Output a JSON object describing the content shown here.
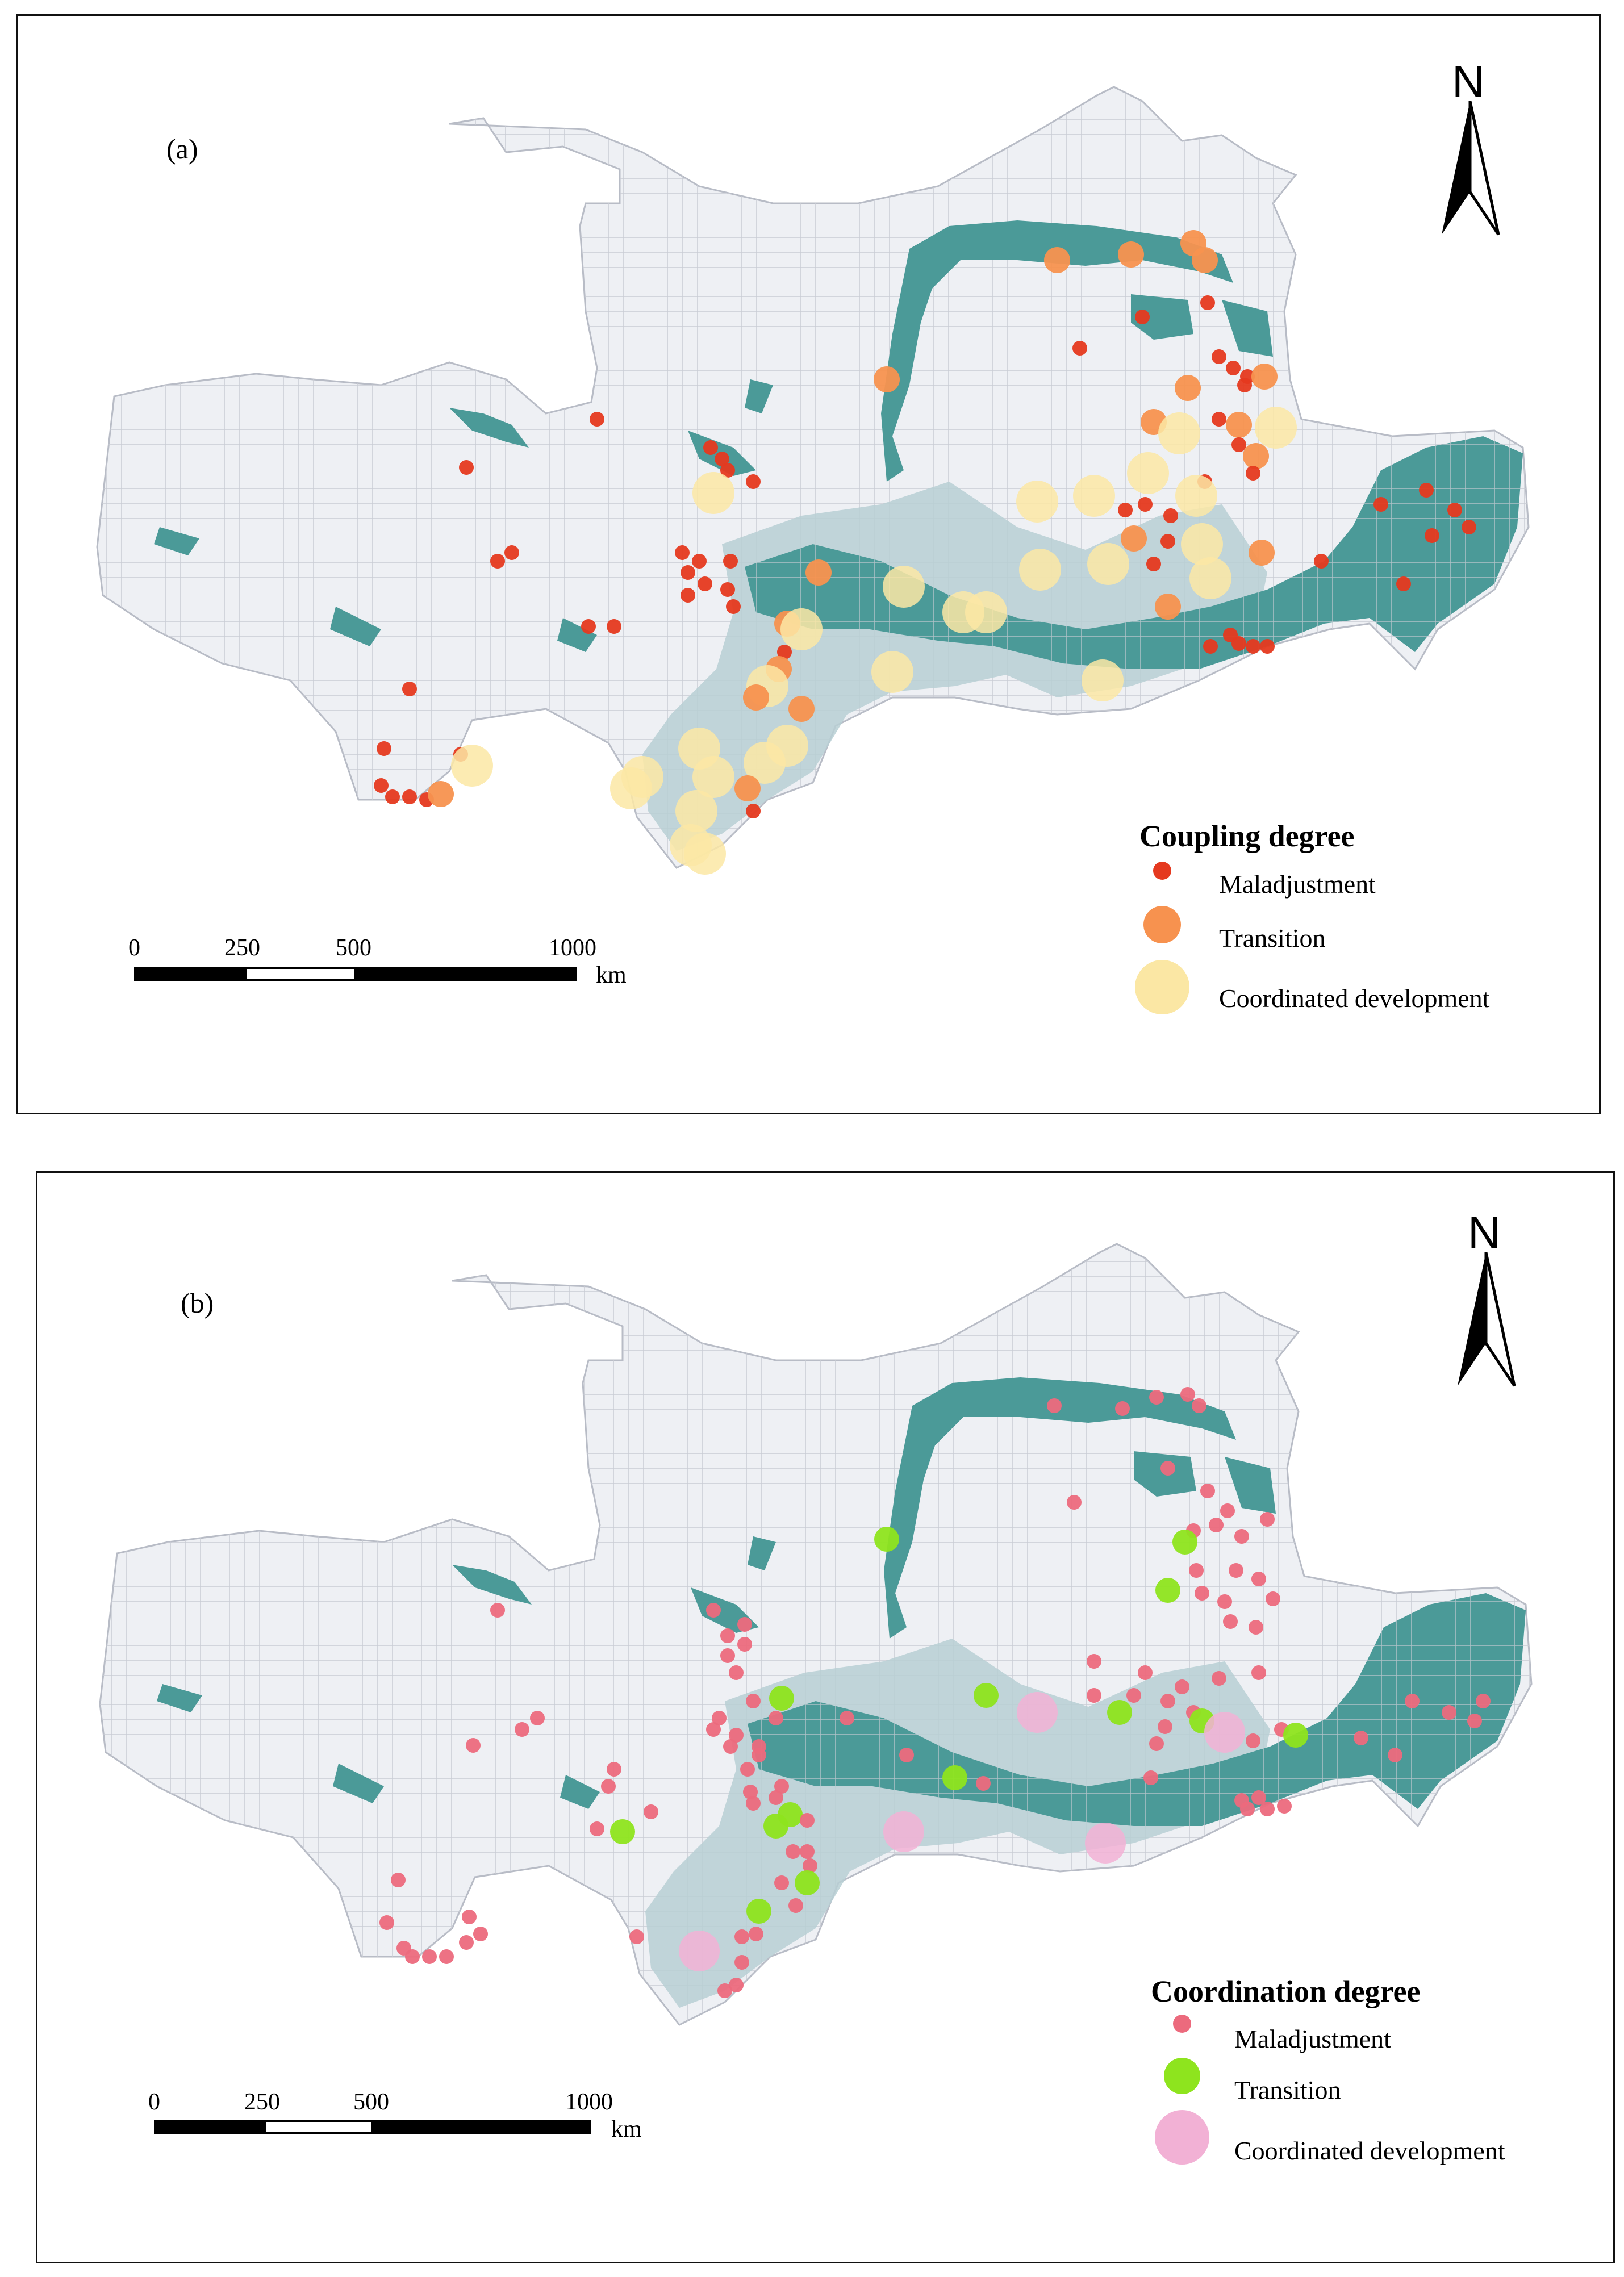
{
  "panels": [
    {
      "label": "(a)",
      "legend_title": "Coupling degree",
      "classes": [
        {
          "label": "Maladjustment",
          "color": "#e5391f"
        },
        {
          "label": "Transition",
          "color": "#f7924f"
        },
        {
          "label": "Coordinated development",
          "color": "#fbe7a4"
        }
      ],
      "north": "N",
      "scale": {
        "ticks": [
          "0",
          "250",
          "500",
          "1000"
        ],
        "unit": "km"
      }
    },
    {
      "label": "(b)",
      "legend_title": "Coordination degree",
      "classes": [
        {
          "label": "Maladjustment",
          "color": "#ec6a7d"
        },
        {
          "label": "Transition",
          "color": "#8ee41e"
        },
        {
          "label": "Coordinated development",
          "color": "#f2b1d5"
        }
      ],
      "north": "N",
      "scale": {
        "ticks": [
          "0",
          "250",
          "500",
          "1000"
        ],
        "unit": "km"
      }
    }
  ],
  "colors": {
    "region_fill": "#eef0f4",
    "grid": "#c9ccd4",
    "dense_fill": "#4b9a98",
    "light_fill": "#b7cfd4",
    "water": "#4fb3cf"
  }
}
